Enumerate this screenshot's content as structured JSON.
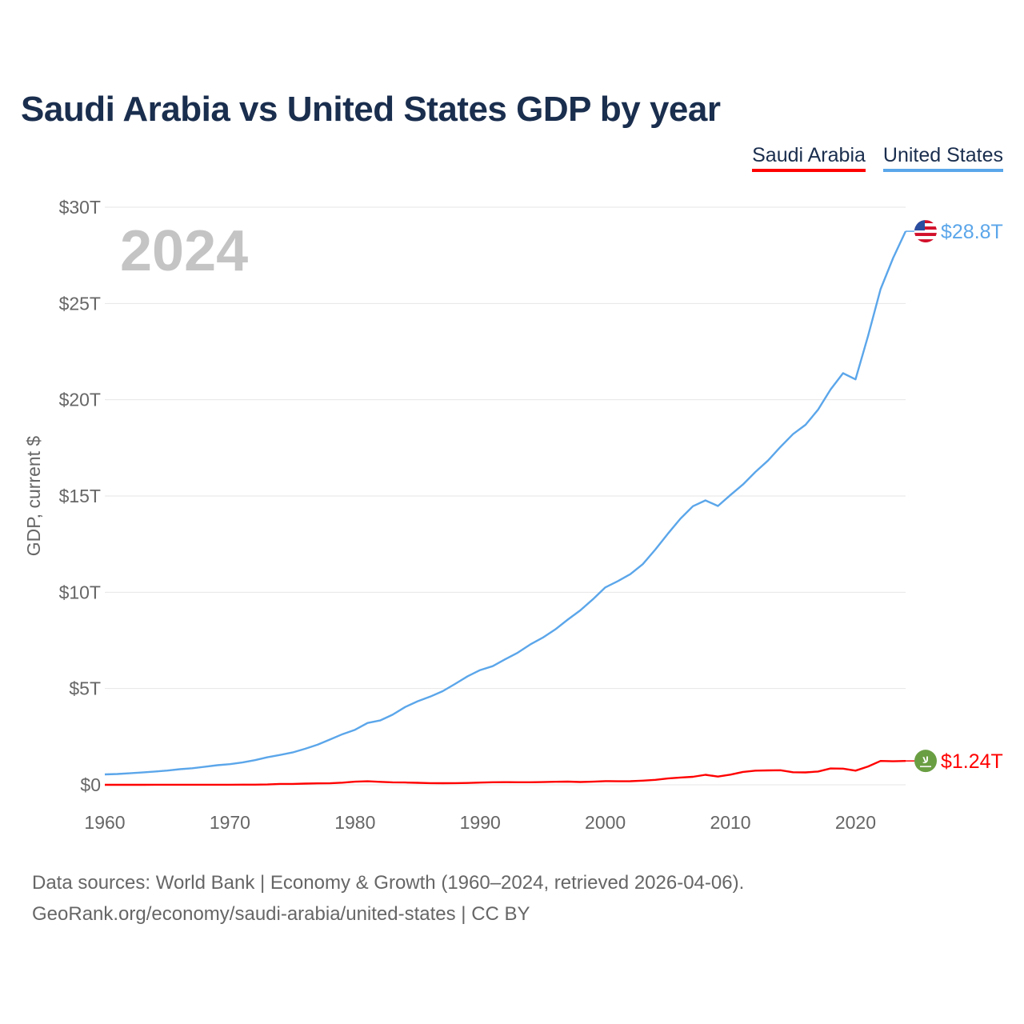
{
  "title": "Saudi Arabia vs United States GDP by year",
  "year_label": "2024",
  "footer": {
    "line1": "Data sources: World Bank | Economy & Growth (1960–2024, retrieved 2026-04-06).",
    "line2": "GeoRank.org/economy/saudi-arabia/united-states | CC BY"
  },
  "chart_data": {
    "type": "line",
    "title": "Saudi Arabia vs United States GDP by year",
    "xlabel": "",
    "ylabel": "GDP, current $",
    "xlim": [
      1960,
      2024
    ],
    "ylim": [
      0,
      30
    ],
    "y_unit": "trillion USD",
    "grid": true,
    "legend": "top-right",
    "x_ticks": [
      "1960",
      "1970",
      "1980",
      "1990",
      "2000",
      "2010",
      "2020"
    ],
    "x_tick_values": [
      1960,
      1970,
      1980,
      1990,
      2000,
      2010,
      2020
    ],
    "y_ticks": [
      "$0",
      "$5T",
      "$10T",
      "$15T",
      "$20T",
      "$25T",
      "$30T"
    ],
    "y_tick_values": [
      0,
      5,
      10,
      15,
      20,
      25,
      30
    ],
    "x_start": 1960,
    "series": [
      {
        "name": "Saudi Arabia",
        "color": "#ff0000",
        "end_label": "$1.24T",
        "icon": "saudi-flag-icon",
        "values": [
          0.002,
          0.002,
          0.002,
          0.002,
          0.003,
          0.003,
          0.003,
          0.003,
          0.004,
          0.004,
          0.005,
          0.007,
          0.009,
          0.015,
          0.045,
          0.047,
          0.064,
          0.075,
          0.08,
          0.111,
          0.164,
          0.184,
          0.153,
          0.129,
          0.119,
          0.103,
          0.087,
          0.085,
          0.088,
          0.095,
          0.117,
          0.132,
          0.137,
          0.133,
          0.135,
          0.143,
          0.158,
          0.165,
          0.146,
          0.161,
          0.19,
          0.184,
          0.189,
          0.216,
          0.259,
          0.329,
          0.377,
          0.416,
          0.52,
          0.429,
          0.528,
          0.671,
          0.736,
          0.747,
          0.756,
          0.654,
          0.645,
          0.689,
          0.846,
          0.838,
          0.735,
          0.95,
          1.24,
          1.22,
          1.24
        ]
      },
      {
        "name": "United States",
        "color": "#5ba6ea",
        "end_label": "$28.8T",
        "icon": "us-flag-icon",
        "values": [
          0.54,
          0.56,
          0.6,
          0.64,
          0.69,
          0.74,
          0.81,
          0.86,
          0.94,
          1.02,
          1.07,
          1.16,
          1.28,
          1.43,
          1.55,
          1.68,
          1.87,
          2.08,
          2.35,
          2.63,
          2.86,
          3.21,
          3.34,
          3.64,
          4.04,
          4.34,
          4.58,
          4.86,
          5.24,
          5.64,
          5.96,
          6.16,
          6.52,
          6.86,
          7.29,
          7.64,
          8.07,
          8.58,
          9.06,
          9.63,
          10.25,
          10.58,
          10.94,
          11.46,
          12.22,
          13.04,
          13.82,
          14.47,
          14.77,
          14.48,
          15.05,
          15.6,
          16.25,
          16.84,
          17.55,
          18.21,
          18.7,
          19.48,
          20.53,
          21.38,
          21.06,
          23.32,
          25.74,
          27.36,
          28.75
        ]
      }
    ]
  }
}
